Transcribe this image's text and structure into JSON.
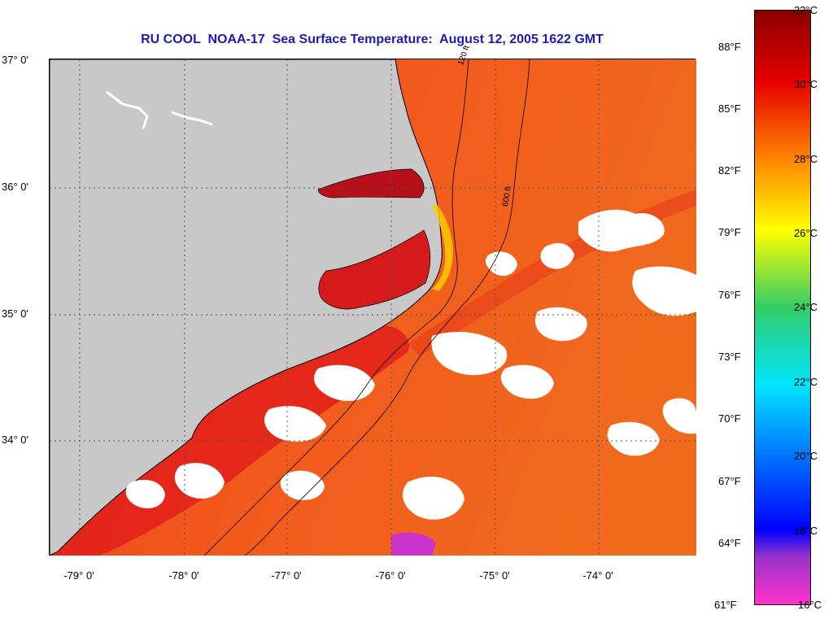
{
  "title": "RU COOL  NOAA-17  Sea Surface Temperature:  August 12, 2005 1622 GMT",
  "lat_labels": [
    "37° 0'",
    "36° 0'",
    "35° 0'",
    "34° 0'"
  ],
  "lon_labels": [
    "-79° 0'",
    "-78° 0'",
    "-77° 0'",
    "-76° 0'",
    "-75° 0'",
    "-74° 0'"
  ],
  "contour_labels": [
    "120 ft",
    "600 ft"
  ],
  "colorbar": {
    "fahrenheit_labels": [
      "88°F",
      "85°F",
      "82°F",
      "79°F",
      "76°F",
      "73°F",
      "70°F",
      "67°F",
      "64°F",
      "61°F"
    ],
    "celsius_labels": [
      "32°C",
      "30°C",
      "28°C",
      "26°C",
      "24°C",
      "22°C",
      "20°C",
      "18°C",
      "16°C"
    ],
    "range_celsius": [
      16,
      32
    ],
    "colors": {
      "max": "#8b0000",
      "red": "#e60000",
      "orange": "#ff7a00",
      "yellow": "#ffff00",
      "green": "#33cc66",
      "cyan": "#00e5ff",
      "blue": "#0000ff",
      "purple": "#9933cc",
      "min": "#ff33cc"
    }
  },
  "map_colors": {
    "land": "#c8c8c8",
    "ocean_warm": "#f2571c",
    "ocean_hot": "#e0201b",
    "sound": "#d41a1a",
    "cloud": "#ffffff"
  }
}
